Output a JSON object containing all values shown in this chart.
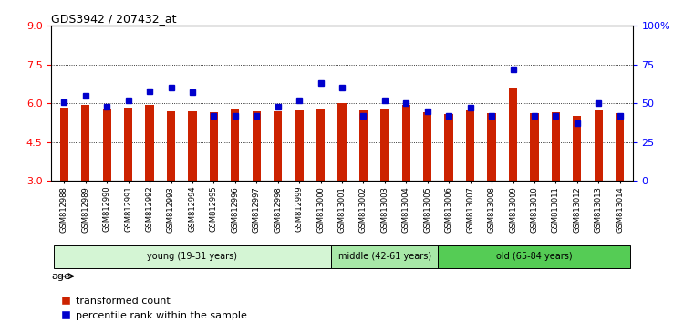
{
  "title": "GDS3942 / 207432_at",
  "samples": [
    "GSM812988",
    "GSM812989",
    "GSM812990",
    "GSM812991",
    "GSM812992",
    "GSM812993",
    "GSM812994",
    "GSM812995",
    "GSM812996",
    "GSM812997",
    "GSM812998",
    "GSM812999",
    "GSM813000",
    "GSM813001",
    "GSM813002",
    "GSM813003",
    "GSM813004",
    "GSM813005",
    "GSM813006",
    "GSM813007",
    "GSM813008",
    "GSM813009",
    "GSM813010",
    "GSM813011",
    "GSM813012",
    "GSM813013",
    "GSM813014"
  ],
  "bar_values": [
    5.85,
    5.95,
    5.75,
    5.82,
    5.95,
    5.7,
    5.68,
    5.65,
    5.75,
    5.68,
    5.68,
    5.72,
    5.78,
    6.0,
    5.72,
    5.8,
    5.95,
    5.65,
    5.6,
    5.72,
    5.62,
    6.6,
    5.62,
    5.65,
    5.5,
    5.72,
    5.62
  ],
  "percentile_values": [
    51,
    55,
    48,
    52,
    58,
    60,
    57,
    42,
    42,
    42,
    48,
    52,
    63,
    60,
    42,
    52,
    50,
    45,
    42,
    47,
    42,
    72,
    42,
    42,
    37,
    50,
    42
  ],
  "groups": [
    {
      "label": "young (19-31 years)",
      "start": 0,
      "end": 13,
      "color": "#d4f5d4"
    },
    {
      "label": "middle (42-61 years)",
      "start": 13,
      "end": 18,
      "color": "#a8e8a8"
    },
    {
      "label": "old (65-84 years)",
      "start": 18,
      "end": 27,
      "color": "#55cc55"
    }
  ],
  "ylim_left": [
    3,
    9
  ],
  "ylim_right": [
    0,
    100
  ],
  "yticks_left": [
    3,
    4.5,
    6,
    7.5,
    9
  ],
  "yticks_right": [
    0,
    25,
    50,
    75,
    100
  ],
  "bar_color": "#cc2200",
  "dot_color": "#0000cc",
  "grid_values": [
    4.5,
    6.0,
    7.5
  ],
  "bar_bottom": 3.0,
  "age_label": "age",
  "bar_width": 0.4
}
